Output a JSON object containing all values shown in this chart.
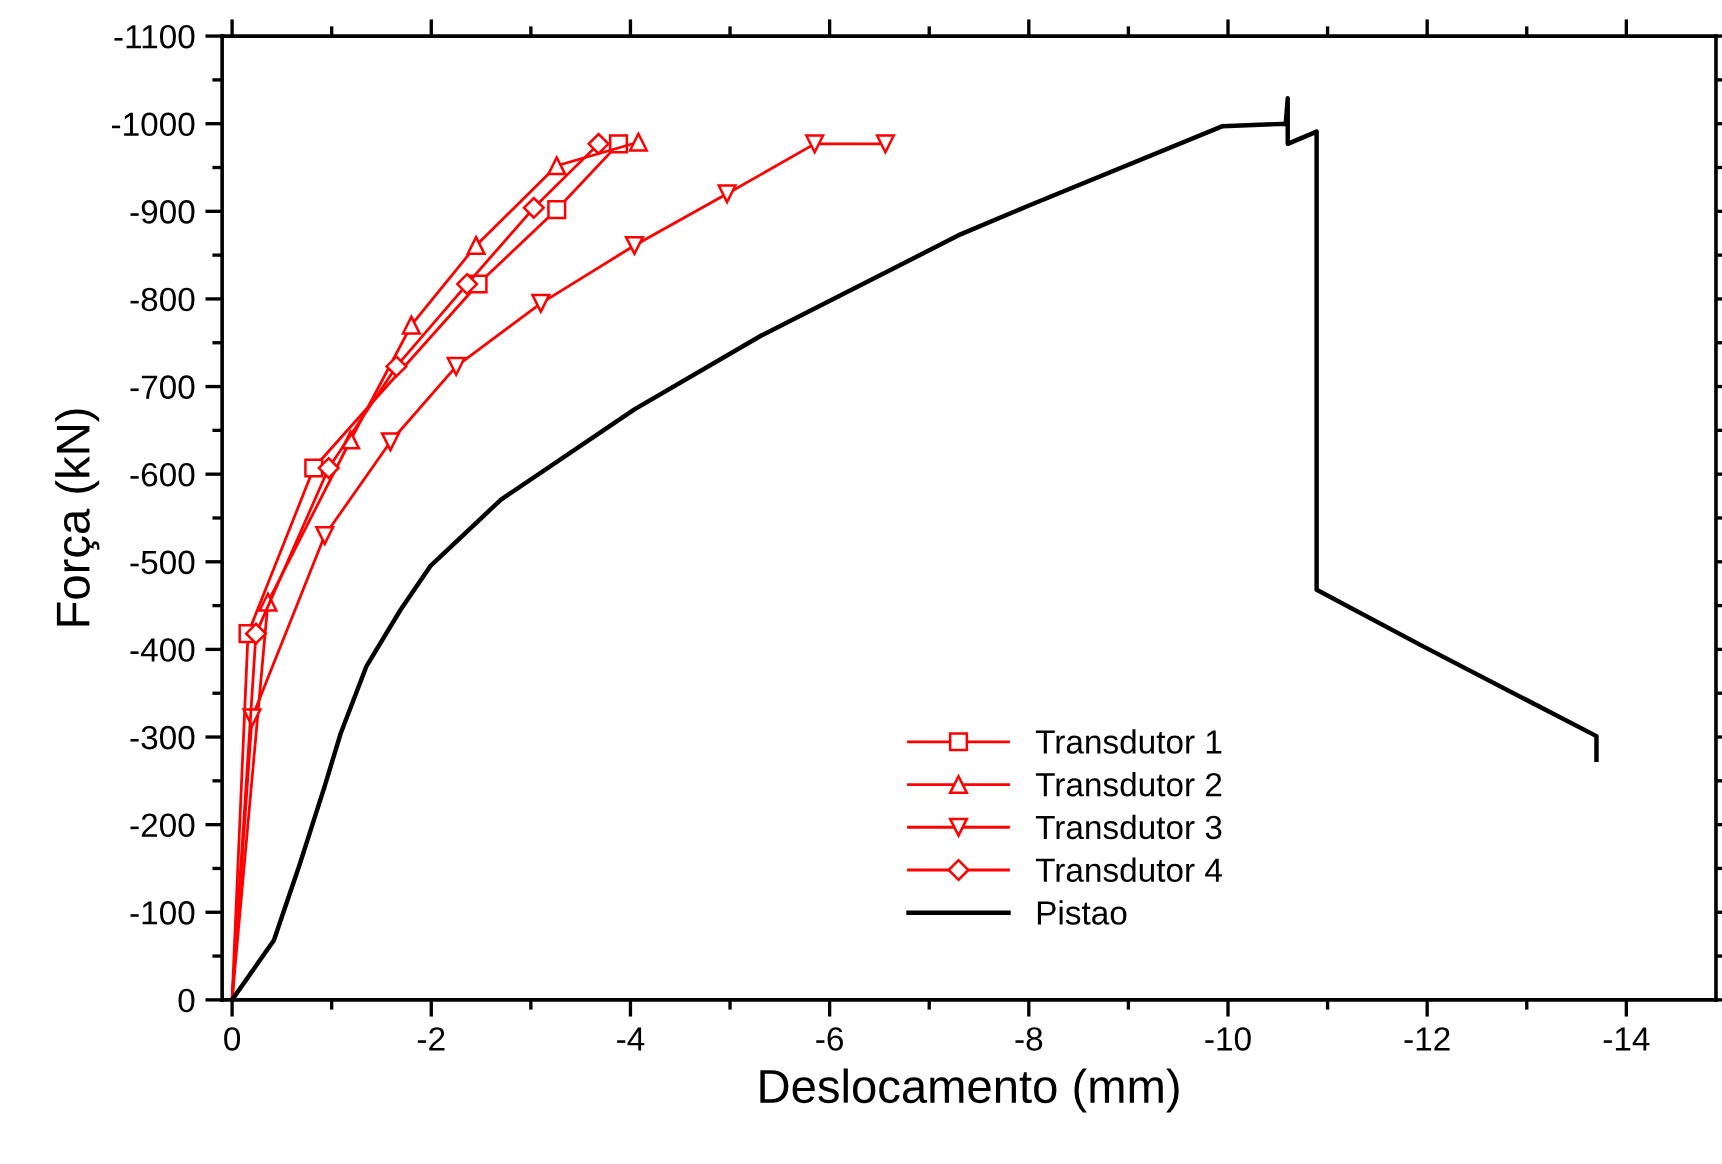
{
  "chart_data": {
    "type": "line",
    "xlabel": "Deslocamento (mm)",
    "ylabel": "Força (kN)",
    "xlim": [
      0.1,
      -14.9
    ],
    "xticks": [
      0,
      -2,
      -4,
      -6,
      -8,
      -10,
      -12,
      -14
    ],
    "ylim": [
      0,
      -1100
    ],
    "yticks": [
      0,
      -100,
      -200,
      -300,
      -400,
      -500,
      -600,
      -700,
      -800,
      -900,
      -1000,
      -1100
    ],
    "grid": false,
    "legend": "bottom right",
    "line_style": "solid",
    "series": [
      {
        "name": "Transdutor 1",
        "color": "#ff0000",
        "marker": "square",
        "x": [
          0,
          -0.16,
          -0.82,
          -2.47,
          -3.26,
          -3.88
        ],
        "values": [
          0,
          -418,
          -607,
          -817,
          -902,
          -977
        ]
      },
      {
        "name": "Transdutor 2",
        "color": "#ff0000",
        "marker": "triangle",
        "x": [
          0,
          -0.36,
          -1.19,
          -1.8,
          -2.45,
          -3.26,
          -4.08
        ],
        "values": [
          0,
          -454,
          -639,
          -770,
          -861,
          -952,
          -979
        ]
      },
      {
        "name": "Transdutor 3",
        "color": "#ff0000",
        "marker": "triangle_down",
        "x": [
          0,
          -0.2,
          -0.93,
          -1.59,
          -2.25,
          -3.1,
          -4.04,
          -4.97,
          -5.85,
          -6.56
        ],
        "values": [
          0,
          -322,
          -530,
          -637,
          -723,
          -795,
          -861,
          -920,
          -977,
          -977
        ]
      },
      {
        "name": "Transdutor 4",
        "color": "#ff0000",
        "marker": "diamond",
        "x": [
          0,
          -0.24,
          -0.97,
          -1.65,
          -2.36,
          -3.03,
          -3.68
        ],
        "values": [
          0,
          -418,
          -607,
          -723,
          -817,
          -904,
          -977
        ]
      },
      {
        "name": "Pistao",
        "color": "#000000",
        "marker": "none",
        "x": [
          0,
          -0.42,
          -0.68,
          -0.93,
          -1.09,
          -1.35,
          -1.69,
          -1.99,
          -2.7,
          -4.04,
          -5.31,
          -7.32,
          -7.99,
          -9.94,
          -10.58,
          -10.6,
          -10.6,
          -10.89,
          -10.89,
          -11.95,
          -13.7,
          -13.7
        ],
        "values": [
          0,
          -68,
          -155,
          -244,
          -304,
          -381,
          -445,
          -495,
          -571,
          -674,
          -758,
          -874,
          -906,
          -997,
          -1000,
          -1029,
          -977,
          -991,
          -468,
          -404,
          -301,
          -274
        ]
      }
    ]
  }
}
